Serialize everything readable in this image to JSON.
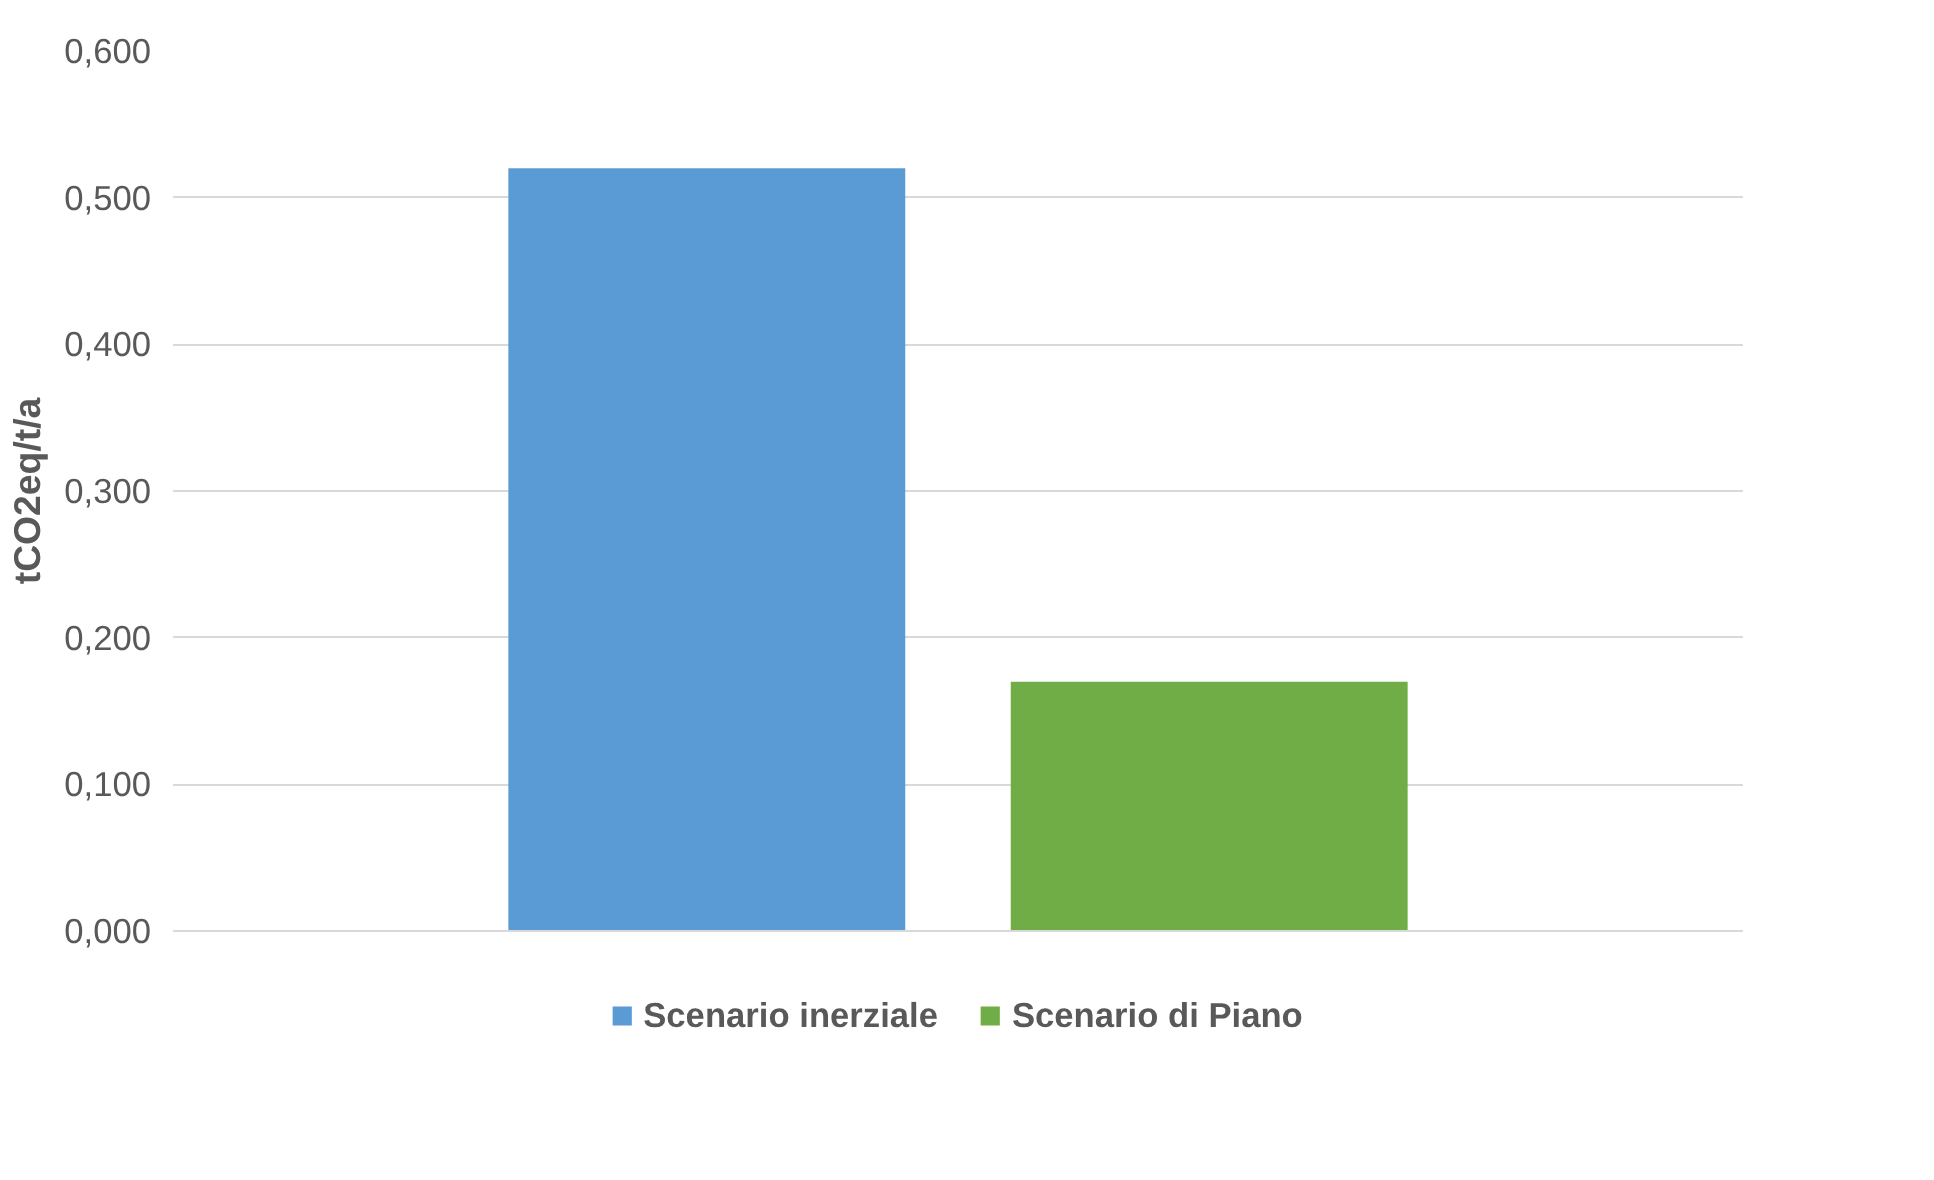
{
  "chart_data": {
    "type": "bar",
    "ylabel": "tCO2eq/t/a",
    "categories": [
      null
    ],
    "series": [
      {
        "name": "Scenario inerziale",
        "color": "#5b9bd5",
        "values": [
          0.52
        ]
      },
      {
        "name": "Scenario di Piano",
        "color": "#70ad47",
        "values": [
          0.17
        ]
      }
    ],
    "ylim": [
      0,
      0.6
    ],
    "yticks": [
      {
        "value": 0,
        "label": "0,000"
      },
      {
        "value": 0.1,
        "label": "0,100"
      },
      {
        "value": 0.2,
        "label": "0,200"
      },
      {
        "value": 0.3,
        "label": "0,300"
      },
      {
        "value": 0.4,
        "label": "0,400"
      },
      {
        "value": 0.5,
        "label": "0,500"
      },
      {
        "value": 0.6,
        "label": "0,600"
      }
    ],
    "grid": "y",
    "legend": "bottom"
  }
}
